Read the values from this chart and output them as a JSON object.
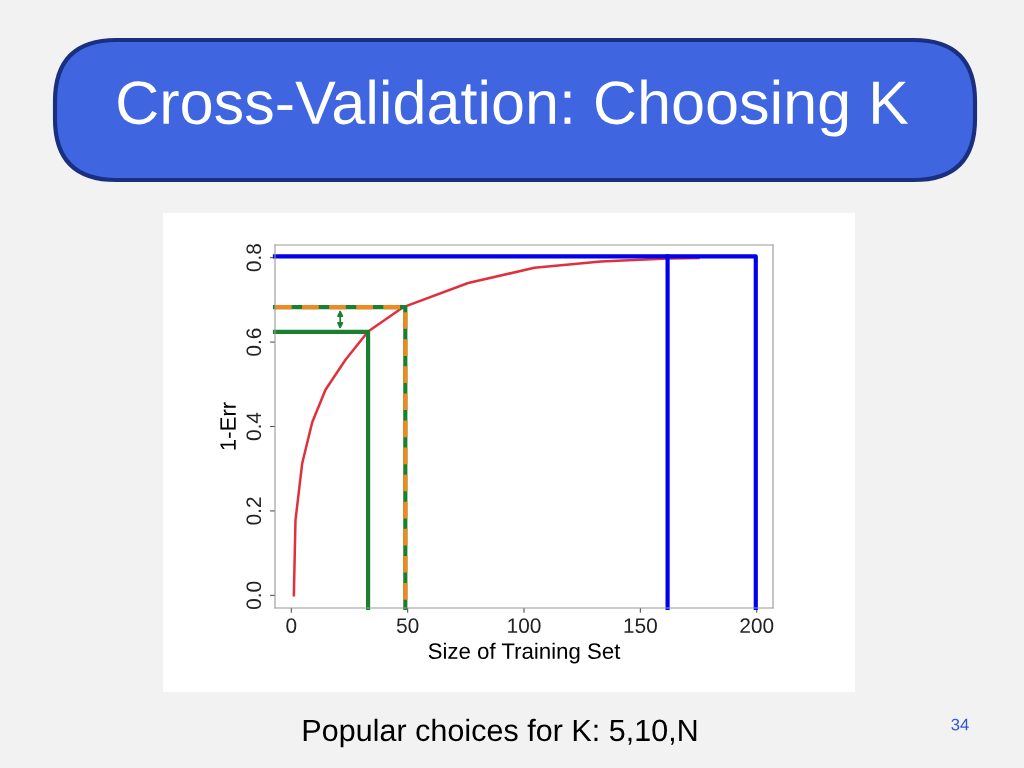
{
  "chart_data": {
    "type": "line",
    "title": "Cross-Validation: Choosing K",
    "xlabel": "Size of Training Set",
    "ylabel": "1-Err",
    "series": [
      {
        "color": "#e0303c",
        "x": [
          1.1,
          1.8,
          4.7,
          9,
          14.7,
          23.3,
          33,
          48.2,
          76,
          104.5,
          133,
          161.7,
          175
        ],
        "values": [
          0,
          0.178,
          0.313,
          0.41,
          0.487,
          0.558,
          0.625,
          0.683,
          0.74,
          0.776,
          0.791,
          0.798,
          0.799
        ]
      },
      {
        "color": "#1a8030",
        "line_style": "solid",
        "x": [
          -7,
          33,
          33
        ],
        "values": [
          0.624,
          0.624,
          -0.03
        ]
      },
      {
        "color": "#1a8030",
        "line_style": "solid",
        "x": [
          -7,
          49,
          49
        ],
        "values": [
          0.683,
          0.683,
          -0.03
        ]
      },
      {
        "color": "#f08a20",
        "line_style": "dashed",
        "x": [
          -7,
          49,
          49
        ],
        "values": [
          0.683,
          0.683,
          -0.03
        ]
      },
      {
        "color": "#0000ee",
        "line_style": "solid",
        "x": [
          -7,
          199.6,
          199.6
        ],
        "values": [
          0.803,
          0.803,
          -0.03
        ]
      },
      {
        "color": "#0000ee",
        "line_style": "solid",
        "x": [
          161.7,
          161.7
        ],
        "values": [
          0.803,
          -0.03
        ]
      }
    ],
    "xlim": [
      -7,
      207
    ],
    "ylim": [
      -0.03,
      0.83
    ],
    "xticks": [
      0,
      50,
      100,
      150,
      200
    ],
    "yticks": [
      {
        "value": 0,
        "label": "0.0"
      },
      {
        "value": 0.2,
        "label": "0.2"
      },
      {
        "value": 0.4,
        "label": "0.4"
      },
      {
        "value": 0.6,
        "label": "0.6"
      },
      {
        "value": 0.8,
        "label": "0.8"
      }
    ],
    "grid": false,
    "legend": false,
    "marker": "none",
    "annotations": [
      "Popular choices for K: 5,10,N",
      "34"
    ]
  }
}
